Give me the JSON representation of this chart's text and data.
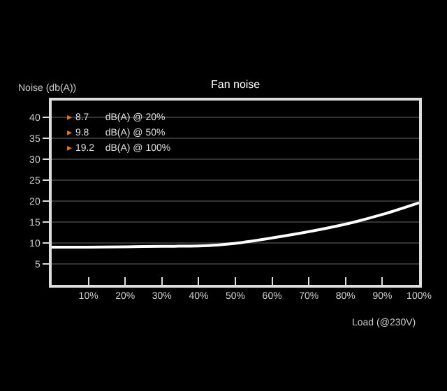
{
  "chart_data": {
    "type": "line",
    "title": "Fan noise",
    "xlabel": "Load (@230V)",
    "ylabel": "Noise (db(A))",
    "x": [
      0,
      10,
      20,
      30,
      40,
      45,
      50,
      60,
      70,
      80,
      90,
      100
    ],
    "series": [
      {
        "color": "#ffffff",
        "values": [
          9.0,
          9.0,
          9.1,
          9.2,
          9.3,
          9.5,
          9.9,
          11.2,
          12.7,
          14.5,
          16.8,
          19.6
        ]
      }
    ],
    "xlim": [
      0,
      100
    ],
    "ylim": [
      0,
      44
    ],
    "xticks": [
      {
        "value": 10,
        "label": "10%"
      },
      {
        "value": 20,
        "label": "20%"
      },
      {
        "value": 30,
        "label": "30%"
      },
      {
        "value": 40,
        "label": "40%"
      },
      {
        "value": 50,
        "label": "50%"
      },
      {
        "value": 60,
        "label": "60%"
      },
      {
        "value": 70,
        "label": "70%"
      },
      {
        "value": 80,
        "label": "80%"
      },
      {
        "value": 90,
        "label": "90%"
      },
      {
        "value": 100,
        "label": "100%"
      }
    ],
    "yticks": [
      5,
      10,
      15,
      20,
      25,
      30,
      35,
      40
    ],
    "annotations": [
      "▸ 8.7      dB(A) @ 20%",
      "▸ 9.8      dB(A) @ 50%",
      "▸ 19.2    dB(A) @ 100%"
    ],
    "grid": "y",
    "marker": "none",
    "line_style": "solid"
  }
}
